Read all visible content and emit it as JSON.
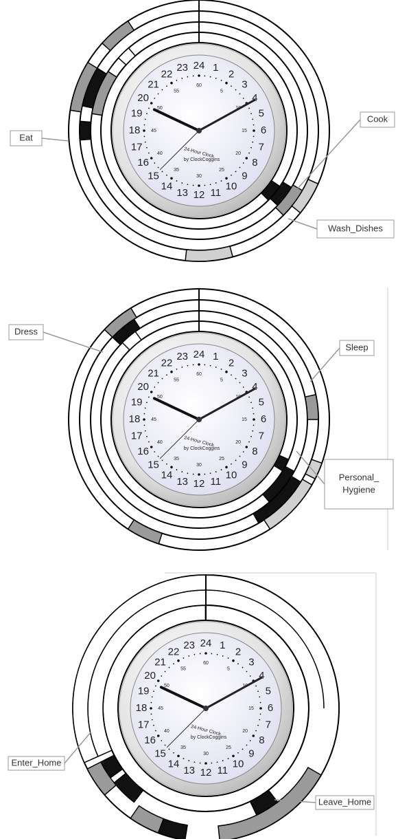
{
  "clock": {
    "hours": [
      1,
      2,
      3,
      4,
      5,
      6,
      7,
      8,
      9,
      10,
      11,
      12,
      13,
      14,
      15,
      16,
      17,
      18,
      19,
      20,
      21,
      22,
      23,
      24
    ],
    "minutes": [
      5,
      10,
      15,
      20,
      25,
      30,
      35,
      40,
      45,
      50,
      55,
      60
    ],
    "title": "24-Hour Clock",
    "brand": "by ClockCoggins"
  },
  "panels": [
    {
      "callouts": [
        {
          "label": [
            "Eat"
          ]
        },
        {
          "label": [
            "Cook"
          ]
        },
        {
          "label": [
            "Wash_Dishes"
          ]
        }
      ]
    },
    {
      "callouts": [
        {
          "label": [
            "Dress"
          ]
        },
        {
          "label": [
            "Sleep"
          ]
        },
        {
          "label": [
            "Personal_",
            "Hygiene"
          ]
        }
      ]
    },
    {
      "callouts": [
        {
          "label": [
            "Enter_Home"
          ]
        },
        {
          "label": [
            "Leave_Home"
          ]
        }
      ]
    }
  ]
}
